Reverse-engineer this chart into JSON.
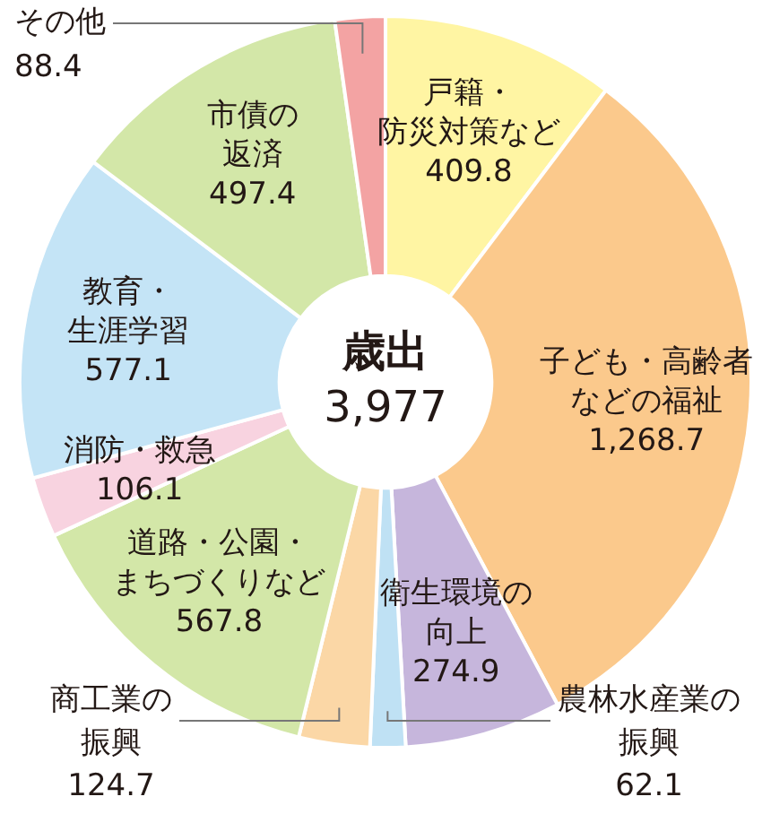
{
  "chart_data": {
    "type": "donut",
    "title": "歳出",
    "subtitle": "3,977",
    "categories": [
      "戸籍・防災対策など",
      "子ども・高齢者などの福祉",
      "衛生環境の向上",
      "農林水産業の振興",
      "商工業の振興",
      "道路・公園・まちづくりなど",
      "消防・救急",
      "教育・生涯学習",
      "市債の返済",
      "その他"
    ],
    "values": [
      409.8,
      1268.7,
      274.9,
      62.1,
      124.7,
      567.8,
      106.1,
      577.1,
      497.4,
      88.4
    ],
    "value_labels": [
      "409.8",
      "1,268.7",
      "274.9",
      "62.1",
      "124.7",
      "567.8",
      "106.1",
      "577.1",
      "497.4",
      "88.4"
    ],
    "colors": [
      "#fff5a3",
      "#fbc98c",
      "#c6b6dc",
      "#bfe1f4",
      "#fbd7a6",
      "#d3e7a8",
      "#f8d3e0",
      "#c4e4f6",
      "#d3e7a8",
      "#f3a3a3"
    ]
  }
}
